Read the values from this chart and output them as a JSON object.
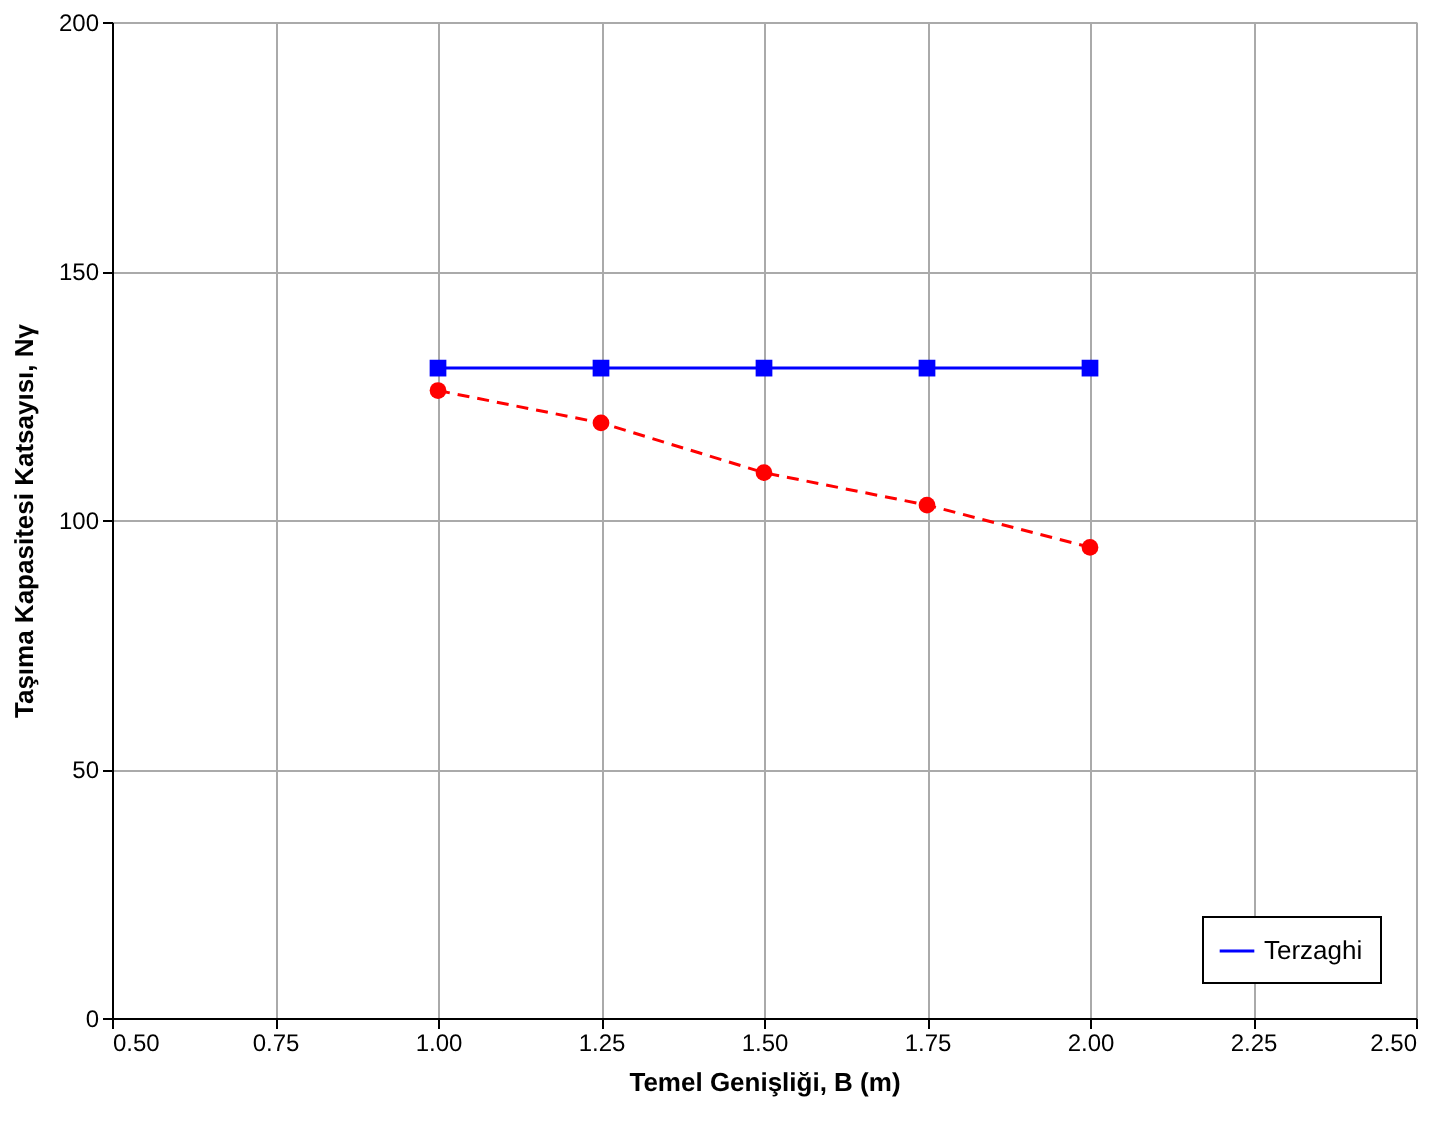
{
  "chart_data": {
    "type": "line",
    "xlabel": "Temel Genişliği, B (m)",
    "ylabel": "Taşıma Kapasitesi Katsayısı, Nγ",
    "x": [
      1.0,
      1.25,
      1.5,
      1.75,
      2.0
    ],
    "series": [
      {
        "color": "#ff0000",
        "marker": "circle",
        "line_style": "dashed",
        "values": [
          126,
          119.5,
          109.5,
          103,
          94.5
        ]
      },
      {
        "name": "Terzaghi",
        "color": "#0000ff",
        "marker": "square",
        "line_style": "solid",
        "values": [
          130.5,
          130.5,
          130.5,
          130.5,
          130.5
        ]
      }
    ],
    "xlim": [
      0.5,
      2.5
    ],
    "xticks": [
      {
        "value": 0.5,
        "label": "0.50"
      },
      {
        "value": 0.75,
        "label": "0.75"
      },
      {
        "value": 1.0,
        "label": "1.00"
      },
      {
        "value": 1.25,
        "label": "1.25"
      },
      {
        "value": 1.5,
        "label": "1.50"
      },
      {
        "value": 1.75,
        "label": "1.75"
      },
      {
        "value": 2.0,
        "label": "2.00"
      },
      {
        "value": 2.25,
        "label": "2.25"
      },
      {
        "value": 2.5,
        "label": "2.50"
      }
    ],
    "ylim": [
      0,
      200
    ],
    "yticks": [
      0,
      50,
      100,
      150,
      200
    ],
    "grid": true,
    "legend": "bottom right"
  }
}
